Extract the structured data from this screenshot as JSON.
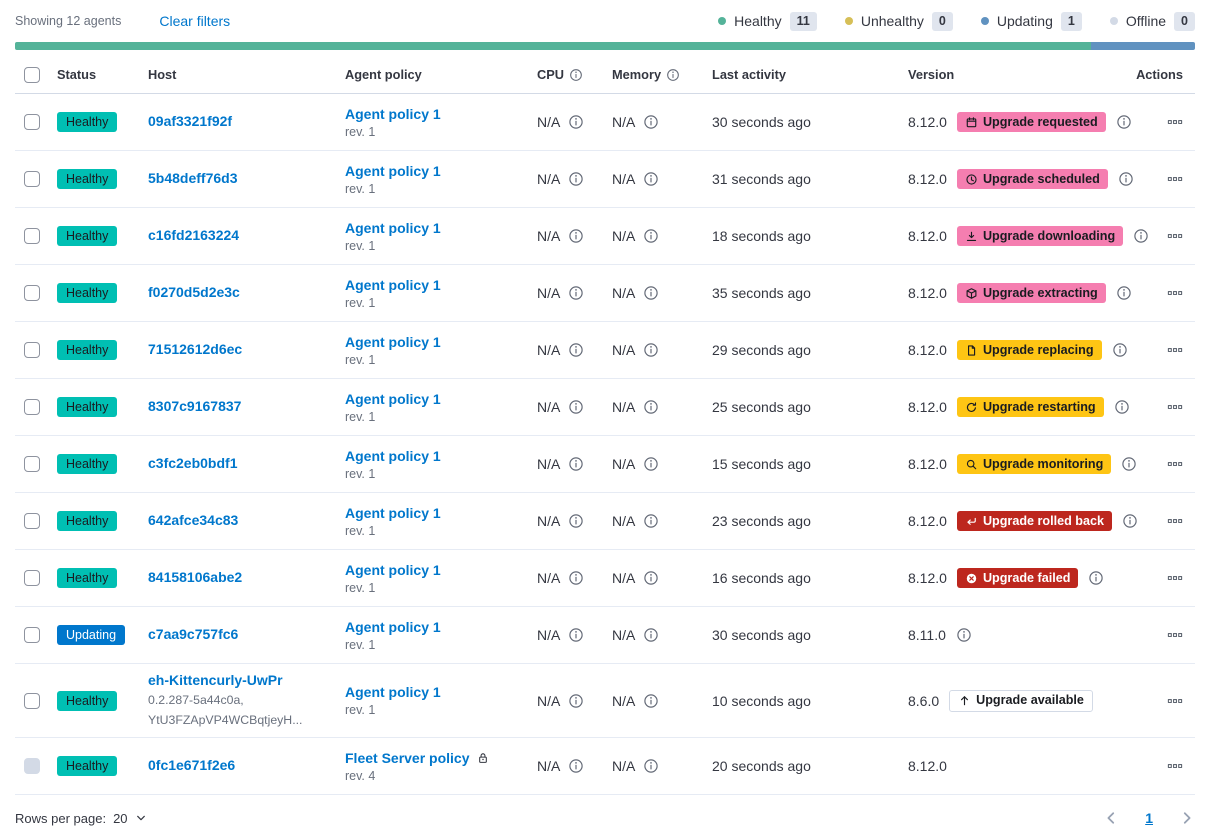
{
  "toolbar": {
    "showing_text": "Showing 12 agents",
    "clear_filters_label": "Clear filters",
    "legend": [
      {
        "label": "Healthy",
        "count": "11",
        "color": "#54B399"
      },
      {
        "label": "Unhealthy",
        "count": "0",
        "color": "#D6BF57"
      },
      {
        "label": "Updating",
        "count": "1",
        "color": "#6092C0"
      },
      {
        "label": "Offline",
        "count": "0",
        "color": "#D3DAE6"
      }
    ]
  },
  "health_bar": [
    {
      "status": "healthy",
      "color": "#54B399",
      "fraction": 0.912
    },
    {
      "status": "updating",
      "color": "#6092C0",
      "fraction": 0.088
    }
  ],
  "colors": {
    "link": "#0077CC",
    "status_variants": {
      "healthy": {
        "bg": "#00BFB3",
        "fg": "#1a1c21"
      },
      "updating": {
        "bg": "#0077CC",
        "fg": "#ffffff"
      }
    },
    "badge_variants": {
      "pink": {
        "bg": "#F57EB0",
        "fg": "#1a1c21",
        "border": ""
      },
      "yellow": {
        "bg": "#FEC514",
        "fg": "#1a1c21",
        "border": ""
      },
      "red": {
        "bg": "#BD271E",
        "fg": "#ffffff",
        "border": ""
      },
      "hollow": {
        "bg": "#ffffff",
        "fg": "#1a1c21",
        "border": "#D3DAE6"
      }
    }
  },
  "table": {
    "headers": [
      {
        "label": "Status"
      },
      {
        "label": "Host"
      },
      {
        "label": "Agent policy"
      },
      {
        "label": "CPU",
        "info": true
      },
      {
        "label": "Memory",
        "info": true
      },
      {
        "label": "Last activity"
      },
      {
        "label": "Version"
      },
      {
        "label": "Actions"
      }
    ],
    "rows": [
      {
        "status": {
          "label": "Healthy",
          "variant": "healthy"
        },
        "host": {
          "name": "09af3321f92f",
          "sub": []
        },
        "policy": {
          "name": "Agent policy 1",
          "revision": "rev. 1",
          "locked": false
        },
        "cpu": "N/A",
        "memory": "N/A",
        "last_activity": "30 seconds ago",
        "version": "8.12.0",
        "upgrade_badge": {
          "label": "Upgrade requested",
          "icon": "calendar-icon",
          "variant": "pink"
        },
        "version_info": true,
        "checkbox_disabled": false
      },
      {
        "status": {
          "label": "Healthy",
          "variant": "healthy"
        },
        "host": {
          "name": "5b48deff76d3",
          "sub": []
        },
        "policy": {
          "name": "Agent policy 1",
          "revision": "rev. 1",
          "locked": false
        },
        "cpu": "N/A",
        "memory": "N/A",
        "last_activity": "31 seconds ago",
        "version": "8.12.0",
        "upgrade_badge": {
          "label": "Upgrade scheduled",
          "icon": "clock-icon",
          "variant": "pink"
        },
        "version_info": true,
        "checkbox_disabled": false
      },
      {
        "status": {
          "label": "Healthy",
          "variant": "healthy"
        },
        "host": {
          "name": "c16fd2163224",
          "sub": []
        },
        "policy": {
          "name": "Agent policy 1",
          "revision": "rev. 1",
          "locked": false
        },
        "cpu": "N/A",
        "memory": "N/A",
        "last_activity": "18 seconds ago",
        "version": "8.12.0",
        "upgrade_badge": {
          "label": "Upgrade downloading",
          "icon": "download-icon",
          "variant": "pink"
        },
        "version_info": true,
        "checkbox_disabled": false
      },
      {
        "status": {
          "label": "Healthy",
          "variant": "healthy"
        },
        "host": {
          "name": "f0270d5d2e3c",
          "sub": []
        },
        "policy": {
          "name": "Agent policy 1",
          "revision": "rev. 1",
          "locked": false
        },
        "cpu": "N/A",
        "memory": "N/A",
        "last_activity": "35 seconds ago",
        "version": "8.12.0",
        "upgrade_badge": {
          "label": "Upgrade extracting",
          "icon": "package-icon",
          "variant": "pink"
        },
        "version_info": true,
        "checkbox_disabled": false
      },
      {
        "status": {
          "label": "Healthy",
          "variant": "healthy"
        },
        "host": {
          "name": "71512612d6ec",
          "sub": []
        },
        "policy": {
          "name": "Agent policy 1",
          "revision": "rev. 1",
          "locked": false
        },
        "cpu": "N/A",
        "memory": "N/A",
        "last_activity": "29 seconds ago",
        "version": "8.12.0",
        "upgrade_badge": {
          "label": "Upgrade replacing",
          "icon": "document-icon",
          "variant": "yellow"
        },
        "version_info": true,
        "checkbox_disabled": false
      },
      {
        "status": {
          "label": "Healthy",
          "variant": "healthy"
        },
        "host": {
          "name": "8307c9167837",
          "sub": []
        },
        "policy": {
          "name": "Agent policy 1",
          "revision": "rev. 1",
          "locked": false
        },
        "cpu": "N/A",
        "memory": "N/A",
        "last_activity": "25 seconds ago",
        "version": "8.12.0",
        "upgrade_badge": {
          "label": "Upgrade restarting",
          "icon": "refresh-icon",
          "variant": "yellow"
        },
        "version_info": true,
        "checkbox_disabled": false
      },
      {
        "status": {
          "label": "Healthy",
          "variant": "healthy"
        },
        "host": {
          "name": "c3fc2eb0bdf1",
          "sub": []
        },
        "policy": {
          "name": "Agent policy 1",
          "revision": "rev. 1",
          "locked": false
        },
        "cpu": "N/A",
        "memory": "N/A",
        "last_activity": "15 seconds ago",
        "version": "8.12.0",
        "upgrade_badge": {
          "label": "Upgrade monitoring",
          "icon": "inspect-icon",
          "variant": "yellow"
        },
        "version_info": true,
        "checkbox_disabled": false
      },
      {
        "status": {
          "label": "Healthy",
          "variant": "healthy"
        },
        "host": {
          "name": "642afce34c83",
          "sub": []
        },
        "policy": {
          "name": "Agent policy 1",
          "revision": "rev. 1",
          "locked": false
        },
        "cpu": "N/A",
        "memory": "N/A",
        "last_activity": "23 seconds ago",
        "version": "8.12.0",
        "upgrade_badge": {
          "label": "Upgrade rolled back",
          "icon": "return-arrow-icon",
          "variant": "red"
        },
        "version_info": true,
        "checkbox_disabled": false
      },
      {
        "status": {
          "label": "Healthy",
          "variant": "healthy"
        },
        "host": {
          "name": "84158106abe2",
          "sub": []
        },
        "policy": {
          "name": "Agent policy 1",
          "revision": "rev. 1",
          "locked": false
        },
        "cpu": "N/A",
        "memory": "N/A",
        "last_activity": "16 seconds ago",
        "version": "8.12.0",
        "upgrade_badge": {
          "label": "Upgrade failed",
          "icon": "error-icon",
          "variant": "red"
        },
        "version_info": true,
        "checkbox_disabled": false
      },
      {
        "status": {
          "label": "Updating",
          "variant": "updating"
        },
        "host": {
          "name": "c7aa9c757fc6",
          "sub": []
        },
        "policy": {
          "name": "Agent policy 1",
          "revision": "rev. 1",
          "locked": false
        },
        "cpu": "N/A",
        "memory": "N/A",
        "last_activity": "30 seconds ago",
        "version": "8.11.0",
        "upgrade_badge": null,
        "version_info": true,
        "checkbox_disabled": false
      },
      {
        "status": {
          "label": "Healthy",
          "variant": "healthy"
        },
        "host": {
          "name": "eh-Kittencurly-UwPr",
          "sub": [
            "0.2.287-5a44c0a,",
            "YtU3FZApVP4WCBqtjeyH..."
          ]
        },
        "policy": {
          "name": "Agent policy 1",
          "revision": "rev. 1",
          "locked": false
        },
        "cpu": "N/A",
        "memory": "N/A",
        "last_activity": "10 seconds ago",
        "version": "8.6.0",
        "upgrade_badge": {
          "label": "Upgrade available",
          "icon": "arrow-up-icon",
          "variant": "hollow"
        },
        "version_info": false,
        "checkbox_disabled": false
      },
      {
        "status": {
          "label": "Healthy",
          "variant": "healthy"
        },
        "host": {
          "name": "0fc1e671f2e6",
          "sub": []
        },
        "policy": {
          "name": "Fleet Server policy",
          "revision": "rev. 4",
          "locked": true
        },
        "cpu": "N/A",
        "memory": "N/A",
        "last_activity": "20 seconds ago",
        "version": "8.12.0",
        "upgrade_badge": null,
        "version_info": false,
        "checkbox_disabled": true
      }
    ]
  },
  "footer": {
    "rows_per_page_label": "Rows per page:",
    "rows_per_page_value": "20",
    "page": "1"
  }
}
